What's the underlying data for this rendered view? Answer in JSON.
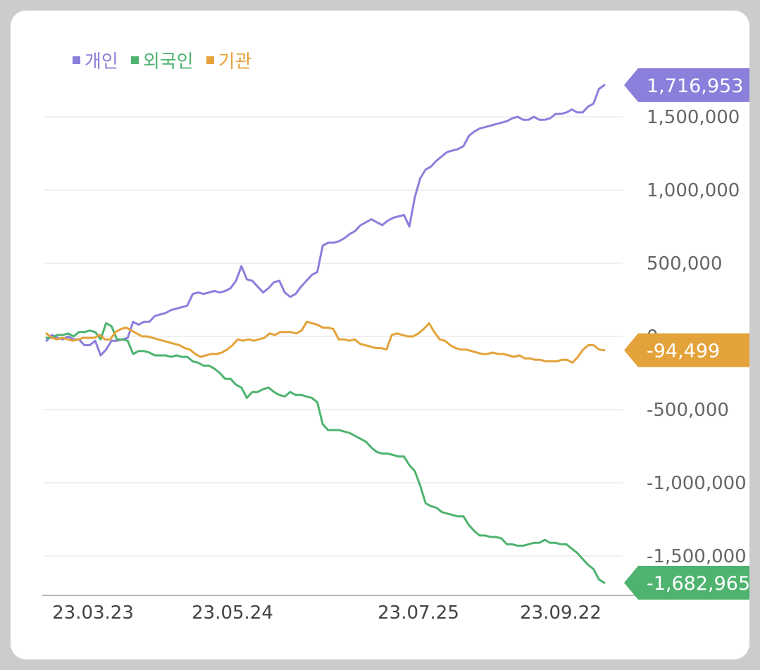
{
  "chart_data": {
    "type": "line",
    "legend_position": "top-left",
    "grid": true,
    "ylim": [
      -1700000,
      1800000
    ],
    "x_ticks": [
      "23.03.23",
      "23.05.24",
      "23.07.25",
      "23.09.22"
    ],
    "y_ticks": [
      {
        "value": 1500000,
        "label": "1,500,000"
      },
      {
        "value": 1000000,
        "label": "1,000,000"
      },
      {
        "value": 500000,
        "label": "500,000"
      },
      {
        "value": 0,
        "label": "0"
      },
      {
        "value": -500000,
        "label": "-500,000"
      },
      {
        "value": -1000000,
        "label": "-1,000,000"
      },
      {
        "value": -1500000,
        "label": "-1,500,000"
      }
    ],
    "series": [
      {
        "name": "개인",
        "color": "#8b7fdc",
        "last_label": "1,716,953",
        "values": [
          -30000,
          10000,
          -10000,
          -20000,
          0,
          -20000,
          -20000,
          -60000,
          -60000,
          -30000,
          -130000,
          -90000,
          -30000,
          -30000,
          -20000,
          -10000,
          100000,
          80000,
          100000,
          100000,
          140000,
          150000,
          160000,
          180000,
          190000,
          200000,
          210000,
          290000,
          300000,
          290000,
          300000,
          310000,
          300000,
          310000,
          330000,
          380000,
          480000,
          390000,
          380000,
          340000,
          300000,
          330000,
          370000,
          380000,
          300000,
          270000,
          290000,
          340000,
          380000,
          420000,
          440000,
          620000,
          640000,
          640000,
          650000,
          670000,
          700000,
          720000,
          760000,
          780000,
          800000,
          780000,
          760000,
          790000,
          810000,
          820000,
          830000,
          750000,
          950000,
          1080000,
          1140000,
          1160000,
          1200000,
          1230000,
          1260000,
          1270000,
          1280000,
          1300000,
          1370000,
          1400000,
          1420000,
          1430000,
          1440000,
          1450000,
          1460000,
          1470000,
          1490000,
          1500000,
          1480000,
          1480000,
          1500000,
          1480000,
          1480000,
          1490000,
          1520000,
          1520000,
          1530000,
          1550000,
          1530000,
          1530000,
          1570000,
          1590000,
          1690000,
          1716953
        ]
      },
      {
        "name": "외국인",
        "color": "#4eb36f",
        "values": [
          -10000,
          -10000,
          10000,
          10000,
          20000,
          0,
          30000,
          30000,
          40000,
          30000,
          -20000,
          90000,
          70000,
          -20000,
          -20000,
          -30000,
          -120000,
          -100000,
          -100000,
          -110000,
          -130000,
          -130000,
          -130000,
          -140000,
          -130000,
          -140000,
          -140000,
          -170000,
          -180000,
          -200000,
          -200000,
          -220000,
          -250000,
          -290000,
          -290000,
          -330000,
          -350000,
          -420000,
          -380000,
          -380000,
          -360000,
          -350000,
          -380000,
          -400000,
          -410000,
          -380000,
          -400000,
          -400000,
          -410000,
          -420000,
          -450000,
          -600000,
          -640000,
          -640000,
          -640000,
          -650000,
          -660000,
          -680000,
          -700000,
          -720000,
          -760000,
          -790000,
          -800000,
          -800000,
          -810000,
          -820000,
          -820000,
          -880000,
          -920000,
          -1020000,
          -1140000,
          -1160000,
          -1170000,
          -1200000,
          -1210000,
          -1220000,
          -1230000,
          -1230000,
          -1290000,
          -1330000,
          -1360000,
          -1360000,
          -1370000,
          -1370000,
          -1380000,
          -1420000,
          -1420000,
          -1430000,
          -1430000,
          -1420000,
          -1410000,
          -1410000,
          -1390000,
          -1410000,
          -1410000,
          -1420000,
          -1420000,
          -1450000,
          -1480000,
          -1520000,
          -1560000,
          -1590000,
          -1660000,
          -1682965
        ]
      },
      {
        "name": "기관",
        "color": "#e4a23a",
        "last_label": "-94,499",
        "values": [
          20000,
          -10000,
          -20000,
          -10000,
          -20000,
          -30000,
          -20000,
          -10000,
          -10000,
          -10000,
          10000,
          -20000,
          -20000,
          30000,
          50000,
          60000,
          40000,
          20000,
          0,
          0,
          -10000,
          -20000,
          -30000,
          -40000,
          -50000,
          -60000,
          -80000,
          -90000,
          -120000,
          -140000,
          -130000,
          -120000,
          -120000,
          -110000,
          -90000,
          -60000,
          -20000,
          -30000,
          -20000,
          -30000,
          -20000,
          -10000,
          20000,
          10000,
          30000,
          30000,
          30000,
          20000,
          40000,
          100000,
          90000,
          80000,
          60000,
          60000,
          50000,
          -20000,
          -20000,
          -30000,
          -20000,
          -50000,
          -60000,
          -70000,
          -80000,
          -80000,
          -90000,
          10000,
          20000,
          10000,
          0,
          0,
          20000,
          50000,
          90000,
          30000,
          -20000,
          -30000,
          -60000,
          -80000,
          -90000,
          -90000,
          -100000,
          -110000,
          -120000,
          -120000,
          -110000,
          -120000,
          -120000,
          -130000,
          -140000,
          -130000,
          -150000,
          -150000,
          -160000,
          -160000,
          -170000,
          -170000,
          -170000,
          -160000,
          -160000,
          -180000,
          -140000,
          -90000,
          -60000,
          -60000,
          -90000,
          -94499
        ]
      }
    ]
  }
}
